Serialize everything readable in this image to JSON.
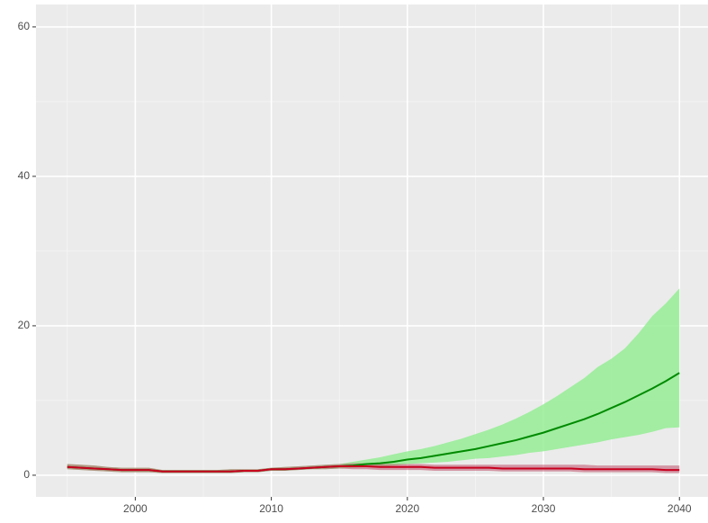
{
  "chart_data": {
    "type": "line",
    "x": [
      1995,
      1996,
      1997,
      1998,
      1999,
      2000,
      2001,
      2002,
      2003,
      2004,
      2005,
      2006,
      2007,
      2008,
      2009,
      2010,
      2011,
      2012,
      2013,
      2014,
      2015,
      2016,
      2017,
      2018,
      2019,
      2020,
      2021,
      2022,
      2023,
      2024,
      2025,
      2026,
      2027,
      2028,
      2029,
      2030,
      2031,
      2032,
      2033,
      2034,
      2035,
      2036,
      2037,
      2038,
      2039,
      2040
    ],
    "series": [
      {
        "color": "#008b00",
        "fill": "#90ee90",
        "values": [
          1.1,
          1.0,
          0.9,
          0.8,
          0.7,
          0.7,
          0.7,
          0.5,
          0.5,
          0.5,
          0.5,
          0.5,
          0.5,
          0.6,
          0.6,
          0.8,
          0.8,
          0.9,
          1.0,
          1.1,
          1.2,
          1.3,
          1.5,
          1.6,
          1.8,
          2.1,
          2.3,
          2.6,
          2.9,
          3.2,
          3.5,
          3.9,
          4.3,
          4.7,
          5.2,
          5.7,
          6.3,
          6.9,
          7.5,
          8.2,
          9.0,
          9.8,
          10.7,
          11.6,
          12.6,
          13.7
        ],
        "lower": [
          0.8,
          0.7,
          0.6,
          0.5,
          0.4,
          0.4,
          0.4,
          0.3,
          0.3,
          0.3,
          0.3,
          0.3,
          0.3,
          0.4,
          0.4,
          0.6,
          0.6,
          0.7,
          0.8,
          0.8,
          0.9,
          1.0,
          1.1,
          1.2,
          1.3,
          1.5,
          1.6,
          1.7,
          1.8,
          2.0,
          2.2,
          2.3,
          2.5,
          2.7,
          3.0,
          3.2,
          3.5,
          3.8,
          4.1,
          4.4,
          4.8,
          5.1,
          5.4,
          5.8,
          6.3,
          6.4
        ],
        "upper": [
          1.5,
          1.4,
          1.3,
          1.1,
          1.0,
          1.0,
          1.0,
          0.7,
          0.7,
          0.7,
          0.7,
          0.7,
          0.8,
          0.8,
          0.8,
          1.0,
          1.1,
          1.2,
          1.3,
          1.4,
          1.5,
          1.8,
          2.1,
          2.4,
          2.8,
          3.2,
          3.5,
          3.9,
          4.4,
          4.9,
          5.5,
          6.1,
          6.8,
          7.6,
          8.5,
          9.5,
          10.6,
          11.8,
          13.0,
          14.5,
          15.6,
          17.0,
          19.0,
          21.3,
          23.0,
          25.0
        ]
      },
      {
        "color": "#c8001e",
        "fill": "#c0506a",
        "values": [
          1.1,
          1.0,
          0.9,
          0.8,
          0.7,
          0.7,
          0.7,
          0.5,
          0.5,
          0.5,
          0.5,
          0.5,
          0.5,
          0.6,
          0.6,
          0.8,
          0.8,
          0.9,
          1.0,
          1.1,
          1.2,
          1.2,
          1.2,
          1.1,
          1.1,
          1.1,
          1.1,
          1.0,
          1.0,
          1.0,
          1.0,
          1.0,
          0.9,
          0.9,
          0.9,
          0.9,
          0.9,
          0.9,
          0.8,
          0.8,
          0.8,
          0.8,
          0.8,
          0.8,
          0.7,
          0.7
        ],
        "lower": [
          0.8,
          0.7,
          0.6,
          0.5,
          0.4,
          0.4,
          0.4,
          0.3,
          0.3,
          0.3,
          0.3,
          0.3,
          0.3,
          0.4,
          0.4,
          0.6,
          0.6,
          0.7,
          0.8,
          0.8,
          0.9,
          0.8,
          0.8,
          0.7,
          0.7,
          0.7,
          0.7,
          0.6,
          0.6,
          0.6,
          0.6,
          0.6,
          0.5,
          0.5,
          0.5,
          0.5,
          0.5,
          0.5,
          0.4,
          0.4,
          0.4,
          0.4,
          0.4,
          0.4,
          0.3,
          0.3
        ],
        "upper": [
          1.5,
          1.4,
          1.3,
          1.1,
          1.0,
          1.0,
          1.0,
          0.7,
          0.7,
          0.7,
          0.7,
          0.7,
          0.8,
          0.8,
          0.8,
          1.0,
          1.1,
          1.2,
          1.3,
          1.4,
          1.5,
          1.6,
          1.6,
          1.5,
          1.5,
          1.5,
          1.5,
          1.4,
          1.4,
          1.4,
          1.4,
          1.4,
          1.4,
          1.4,
          1.4,
          1.4,
          1.4,
          1.4,
          1.4,
          1.3,
          1.3,
          1.3,
          1.3,
          1.3,
          1.3,
          1.3
        ]
      }
    ],
    "xlim": [
      1992.7,
      2042.1
    ],
    "xticks": [
      2000,
      2010,
      2020,
      2030,
      2040
    ],
    "ylim": [
      -2.9,
      63
    ],
    "yticks": [
      0,
      20,
      40,
      60
    ],
    "grid": true
  }
}
